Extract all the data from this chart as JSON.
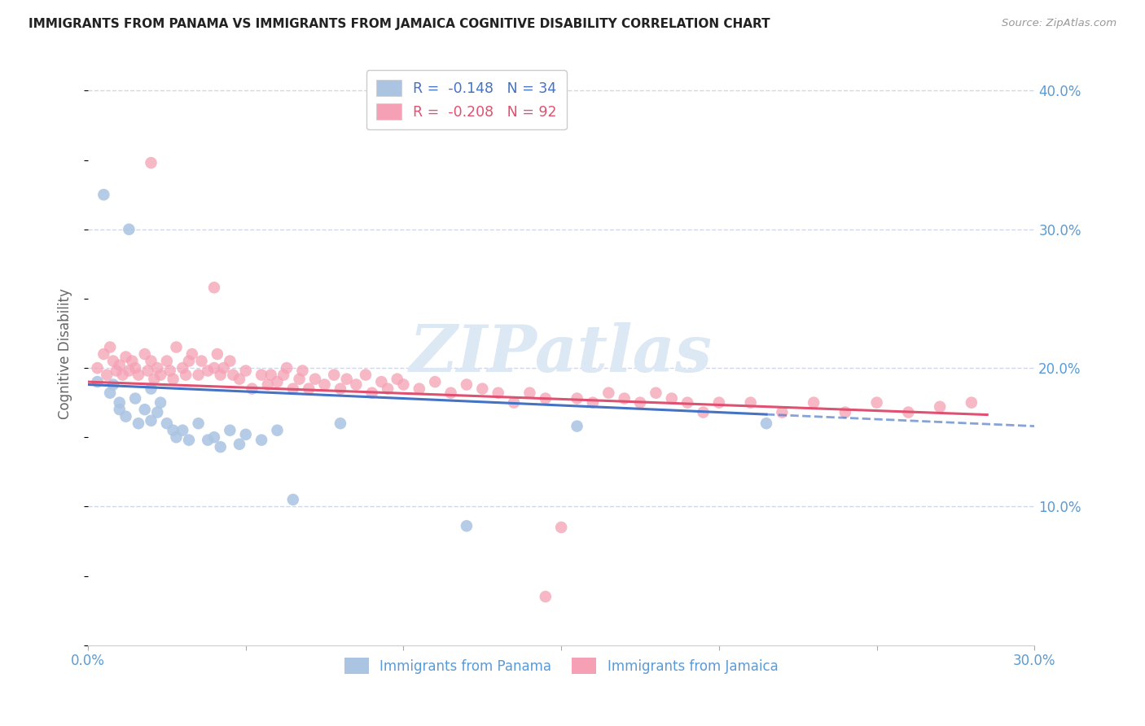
{
  "title": "IMMIGRANTS FROM PANAMA VS IMMIGRANTS FROM JAMAICA COGNITIVE DISABILITY CORRELATION CHART",
  "source": "Source: ZipAtlas.com",
  "ylabel": "Cognitive Disability",
  "x_min": 0.0,
  "x_max": 0.3,
  "y_min": 0.0,
  "y_max": 0.42,
  "x_ticks": [
    0.0,
    0.05,
    0.1,
    0.15,
    0.2,
    0.25,
    0.3
  ],
  "x_tick_labels": [
    "0.0%",
    "",
    "",
    "",
    "",
    "",
    "30.0%"
  ],
  "y_ticks": [
    0.0,
    0.1,
    0.2,
    0.3,
    0.4
  ],
  "y_tick_labels_right": [
    "",
    "10.0%",
    "20.0%",
    "30.0%",
    "40.0%"
  ],
  "legend_r1": "R =  -0.148",
  "legend_n1": "N = 34",
  "legend_r2": "R =  -0.208",
  "legend_n2": "N = 92",
  "color_panama": "#aac4e2",
  "color_jamaica": "#f5a0b4",
  "color_line_panama": "#4472c4",
  "color_line_jamaica": "#e05070",
  "color_axis_labels": "#5b9bd5",
  "color_grid": "#d0d8e8",
  "watermark_color": "#dce8f4",
  "panama_line_start_y": 0.188,
  "panama_line_end_y": 0.158,
  "panama_line_x_max_data": 0.215,
  "jamaica_line_start_y": 0.19,
  "jamaica_line_end_y": 0.165,
  "jamaica_line_x_max_data": 0.285,
  "panama_x": [
    0.003,
    0.005,
    0.007,
    0.008,
    0.01,
    0.01,
    0.012,
    0.013,
    0.015,
    0.016,
    0.018,
    0.02,
    0.02,
    0.022,
    0.023,
    0.025,
    0.027,
    0.028,
    0.03,
    0.032,
    0.035,
    0.038,
    0.04,
    0.042,
    0.045,
    0.048,
    0.05,
    0.055,
    0.06,
    0.065,
    0.08,
    0.12,
    0.155,
    0.215
  ],
  "panama_y": [
    0.19,
    0.325,
    0.182,
    0.188,
    0.175,
    0.17,
    0.165,
    0.3,
    0.178,
    0.16,
    0.17,
    0.185,
    0.162,
    0.168,
    0.175,
    0.16,
    0.155,
    0.15,
    0.155,
    0.148,
    0.16,
    0.148,
    0.15,
    0.143,
    0.155,
    0.145,
    0.152,
    0.148,
    0.155,
    0.105,
    0.16,
    0.086,
    0.158,
    0.16
  ],
  "jamaica_x": [
    0.003,
    0.005,
    0.006,
    0.007,
    0.008,
    0.009,
    0.01,
    0.011,
    0.012,
    0.013,
    0.014,
    0.015,
    0.016,
    0.018,
    0.019,
    0.02,
    0.021,
    0.022,
    0.023,
    0.025,
    0.026,
    0.027,
    0.028,
    0.03,
    0.031,
    0.032,
    0.033,
    0.035,
    0.036,
    0.038,
    0.04,
    0.041,
    0.042,
    0.043,
    0.045,
    0.046,
    0.048,
    0.05,
    0.052,
    0.055,
    0.057,
    0.058,
    0.06,
    0.062,
    0.063,
    0.065,
    0.067,
    0.068,
    0.07,
    0.072,
    0.075,
    0.078,
    0.08,
    0.082,
    0.085,
    0.088,
    0.09,
    0.093,
    0.095,
    0.098,
    0.1,
    0.105,
    0.11,
    0.115,
    0.12,
    0.125,
    0.13,
    0.135,
    0.14,
    0.145,
    0.15,
    0.155,
    0.16,
    0.165,
    0.17,
    0.175,
    0.18,
    0.185,
    0.19,
    0.195,
    0.2,
    0.21,
    0.22,
    0.23,
    0.24,
    0.25,
    0.26,
    0.27,
    0.28,
    0.145,
    0.02,
    0.04
  ],
  "jamaica_y": [
    0.2,
    0.21,
    0.195,
    0.215,
    0.205,
    0.198,
    0.202,
    0.195,
    0.208,
    0.198,
    0.205,
    0.2,
    0.195,
    0.21,
    0.198,
    0.205,
    0.192,
    0.2,
    0.195,
    0.205,
    0.198,
    0.192,
    0.215,
    0.2,
    0.195,
    0.205,
    0.21,
    0.195,
    0.205,
    0.198,
    0.2,
    0.21,
    0.195,
    0.2,
    0.205,
    0.195,
    0.192,
    0.198,
    0.185,
    0.195,
    0.188,
    0.195,
    0.19,
    0.195,
    0.2,
    0.185,
    0.192,
    0.198,
    0.185,
    0.192,
    0.188,
    0.195,
    0.185,
    0.192,
    0.188,
    0.195,
    0.182,
    0.19,
    0.185,
    0.192,
    0.188,
    0.185,
    0.19,
    0.182,
    0.188,
    0.185,
    0.182,
    0.175,
    0.182,
    0.178,
    0.085,
    0.178,
    0.175,
    0.182,
    0.178,
    0.175,
    0.182,
    0.178,
    0.175,
    0.168,
    0.175,
    0.175,
    0.168,
    0.175,
    0.168,
    0.175,
    0.168,
    0.172,
    0.175,
    0.035,
    0.348,
    0.258
  ]
}
